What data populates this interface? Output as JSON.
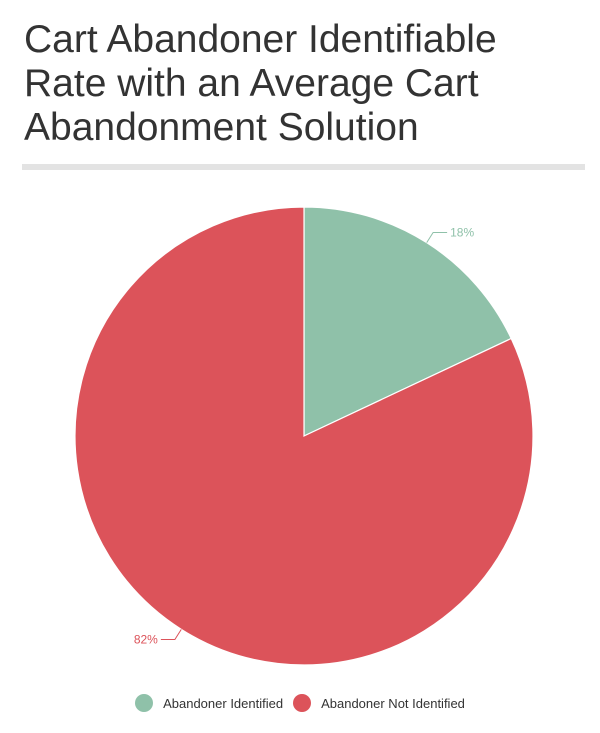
{
  "header": {
    "title": "Cart Abandoner Identifiable Rate with an Average Cart Abandonment Solution"
  },
  "chart_data": {
    "type": "pie",
    "title": "Cart Abandoner Identifiable Rate with an Average Cart Abandonment Solution",
    "slices": [
      {
        "name": "Abandoner Identified",
        "value": 18,
        "label": "18%",
        "color": "#8fc1a9"
      },
      {
        "name": "Abandoner Not Identified",
        "value": 82,
        "label": "82%",
        "color": "#dc535a"
      }
    ],
    "legend_position": "bottom"
  },
  "legend": {
    "items": [
      {
        "label": "Abandoner Identified",
        "color": "#8fc1a9"
      },
      {
        "label": "Abandoner Not Identified",
        "color": "#dc535a"
      }
    ]
  }
}
